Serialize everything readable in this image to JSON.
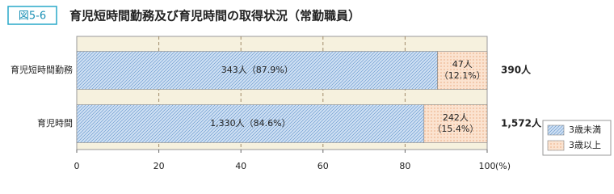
{
  "chart_data": {
    "type": "stacked-bar-horizontal",
    "figure_label": "図5-6",
    "title": "育児短時間勤務及び育児時間の取得状況（常勤職員）",
    "categories": [
      "育児短時間勤務",
      "育児時間"
    ],
    "series": [
      {
        "name": "3歳未満",
        "color": "#cfe0f3",
        "hatch": "#5b8fc9",
        "values": [
          87.9,
          84.6
        ],
        "value_labels": [
          "343人（87.9%）",
          "1,330人（84.6%）"
        ]
      },
      {
        "name": "3歳以上",
        "color": "#fbe3d0",
        "hatch": "#e08a55",
        "values": [
          12.1,
          15.4
        ],
        "value_labels": [
          "47人\n（12.1%）",
          "242人\n（15.4%）"
        ]
      }
    ],
    "annotations": [
      "390人",
      "1,572人"
    ],
    "xlim": [
      0,
      100
    ],
    "xticks": [
      0,
      20,
      40,
      60,
      80,
      100
    ],
    "x_unit": "(%)",
    "grid": true,
    "legend": "lower right"
  }
}
